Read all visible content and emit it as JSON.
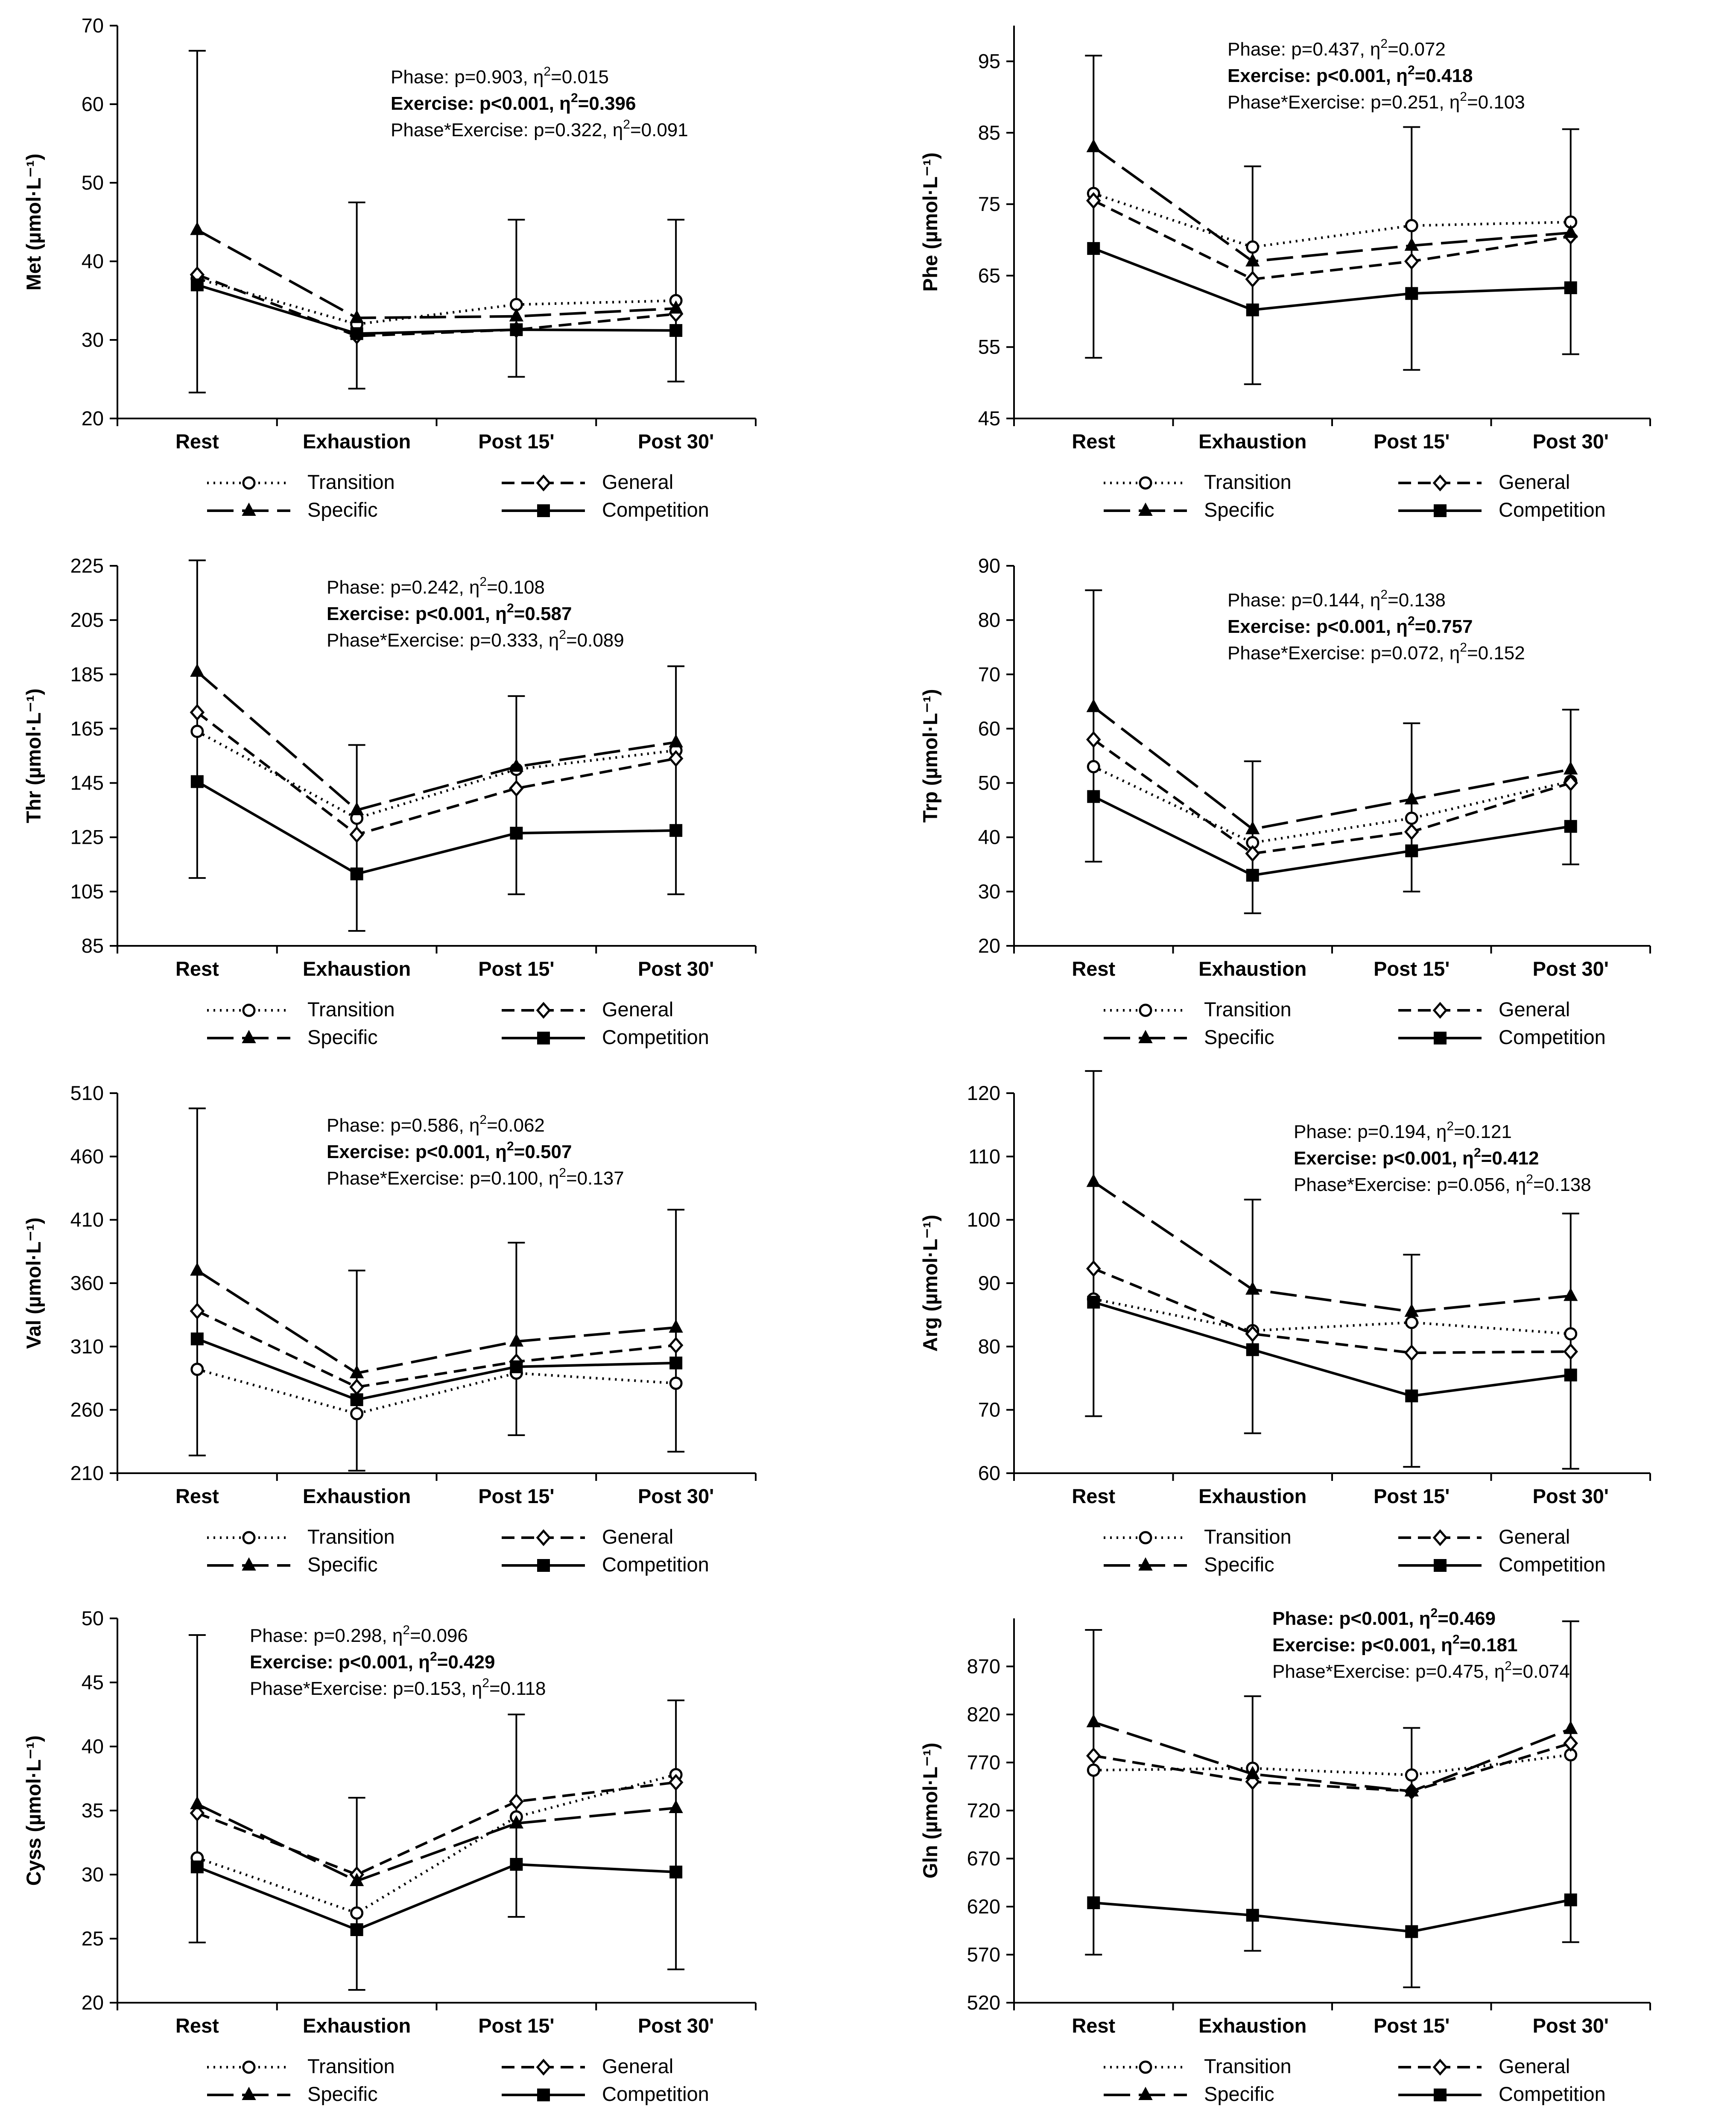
{
  "chart_data": [
    {
      "type": "line",
      "ylabel": "Met (µmol·L⁻¹)",
      "ylim": [
        20,
        70
      ],
      "yticks": [
        20,
        30,
        40,
        50,
        60,
        70
      ],
      "categories": [
        "Rest",
        "Exhaustion",
        "Post 15'",
        "Post 30'"
      ],
      "series": [
        {
          "name": "Transition",
          "values": [
            37.8,
            32.0,
            34.5,
            35.0
          ]
        },
        {
          "name": "General",
          "values": [
            38.3,
            30.5,
            31.3,
            33.3
          ]
        },
        {
          "name": "Specific",
          "values": [
            44.0,
            32.8,
            33.0,
            34.0
          ]
        },
        {
          "name": "Competition",
          "values": [
            37.0,
            30.8,
            31.3,
            31.2
          ]
        }
      ],
      "error_bars": [
        {
          "category": "Rest",
          "low": 23.3,
          "high": 66.8
        },
        {
          "category": "Exhaustion",
          "low": 23.8,
          "high": 47.5
        },
        {
          "category": "Post 15'",
          "low": 25.3,
          "high": 45.3
        },
        {
          "category": "Post 30'",
          "low": 24.7,
          "high": 45.3
        }
      ],
      "stats": [
        {
          "name": "Phase",
          "p": "p=0.903",
          "eta": "0.015",
          "bold": false
        },
        {
          "name": "Exercise",
          "p": "p<0.001",
          "eta": "0.396",
          "bold": true
        },
        {
          "name": "Phase*Exercise",
          "p": "p=0.322",
          "eta": "0.091",
          "bold": false
        }
      ]
    },
    {
      "type": "line",
      "ylabel": "Phe (µmol·L⁻¹)",
      "ylim": [
        45,
        100
      ],
      "yticks": [
        45,
        55,
        65,
        75,
        85,
        95
      ],
      "categories": [
        "Rest",
        "Exhaustion",
        "Post 15'",
        "Post 30'"
      ],
      "series": [
        {
          "name": "Transition",
          "values": [
            76.5,
            69.0,
            72.0,
            72.5
          ]
        },
        {
          "name": "General",
          "values": [
            75.5,
            64.5,
            67.0,
            70.5
          ]
        },
        {
          "name": "Specific",
          "values": [
            83.0,
            67.0,
            69.2,
            71.0
          ]
        },
        {
          "name": "Competition",
          "values": [
            68.8,
            60.2,
            62.5,
            63.3
          ]
        }
      ],
      "error_bars": [
        {
          "category": "Rest",
          "low": 53.5,
          "high": 95.8
        },
        {
          "category": "Exhaustion",
          "low": 49.8,
          "high": 80.3
        },
        {
          "category": "Post 15'",
          "low": 51.8,
          "high": 85.8
        },
        {
          "category": "Post 30'",
          "low": 54.0,
          "high": 85.5
        }
      ],
      "stats": [
        {
          "name": "Phase",
          "p": "p=0.437",
          "eta": "0.072",
          "bold": false
        },
        {
          "name": "Exercise",
          "p": "p<0.001",
          "eta": "0.418",
          "bold": true
        },
        {
          "name": "Phase*Exercise",
          "p": "p=0.251",
          "eta": "0.103",
          "bold": false
        }
      ]
    },
    {
      "type": "line",
      "ylabel": "Thr (µmol·L⁻¹)",
      "ylim": [
        85,
        225
      ],
      "yticks": [
        85,
        105,
        125,
        145,
        165,
        185,
        205,
        225
      ],
      "categories": [
        "Rest",
        "Exhaustion",
        "Post 15'",
        "Post 30'"
      ],
      "series": [
        {
          "name": "Transition",
          "values": [
            164,
            132,
            150,
            157
          ]
        },
        {
          "name": "General",
          "values": [
            171,
            126,
            143,
            154
          ]
        },
        {
          "name": "Specific",
          "values": [
            186,
            135,
            151,
            160
          ]
        },
        {
          "name": "Competition",
          "values": [
            145.5,
            111.5,
            126.5,
            127.5
          ]
        }
      ],
      "error_bars": [
        {
          "category": "Rest",
          "low": 110,
          "high": 227
        },
        {
          "category": "Exhaustion",
          "low": 90.5,
          "high": 159
        },
        {
          "category": "Post 15'",
          "low": 104,
          "high": 177
        },
        {
          "category": "Post 30'",
          "low": 104,
          "high": 188
        }
      ],
      "stats": [
        {
          "name": "Phase",
          "p": "p=0.242",
          "eta": "0.108",
          "bold": false
        },
        {
          "name": "Exercise",
          "p": "p<0.001",
          "eta": "0.587",
          "bold": true
        },
        {
          "name": "Phase*Exercise",
          "p": "p=0.333",
          "eta": "0.089",
          "bold": false
        }
      ]
    },
    {
      "type": "line",
      "ylabel": "Trp (µmol·L⁻¹)",
      "ylim": [
        20,
        90
      ],
      "yticks": [
        20,
        30,
        40,
        50,
        60,
        70,
        80,
        90
      ],
      "categories": [
        "Rest",
        "Exhaustion",
        "Post 15'",
        "Post 30'"
      ],
      "series": [
        {
          "name": "Transition",
          "values": [
            53.0,
            39.0,
            43.5,
            50.3
          ]
        },
        {
          "name": "General",
          "values": [
            58.0,
            37.0,
            41.0,
            50.0
          ]
        },
        {
          "name": "Specific",
          "values": [
            64.0,
            41.5,
            47.0,
            52.5
          ]
        },
        {
          "name": "Competition",
          "values": [
            47.5,
            33.0,
            37.5,
            42.0
          ]
        }
      ],
      "error_bars": [
        {
          "category": "Rest",
          "low": 35.5,
          "high": 85.5
        },
        {
          "category": "Exhaustion",
          "low": 26.0,
          "high": 54.0
        },
        {
          "category": "Post 15'",
          "low": 30.0,
          "high": 61.0
        },
        {
          "category": "Post 30'",
          "low": 35.0,
          "high": 63.5
        }
      ],
      "stats": [
        {
          "name": "Phase",
          "p": "p=0.144",
          "eta": "0.138",
          "bold": false
        },
        {
          "name": "Exercise",
          "p": "p<0.001",
          "eta": "0.757",
          "bold": true
        },
        {
          "name": "Phase*Exercise",
          "p": "p=0.072",
          "eta": "0.152",
          "bold": false
        }
      ]
    },
    {
      "type": "line",
      "ylabel": "Val (µmol·L⁻¹)",
      "ylim": [
        210,
        510
      ],
      "yticks": [
        210,
        260,
        310,
        360,
        410,
        460,
        510
      ],
      "categories": [
        "Rest",
        "Exhaustion",
        "Post 15'",
        "Post 30'"
      ],
      "series": [
        {
          "name": "Transition",
          "values": [
            292,
            257,
            289,
            281
          ]
        },
        {
          "name": "General",
          "values": [
            338,
            278,
            298,
            311
          ]
        },
        {
          "name": "Specific",
          "values": [
            370,
            289,
            314,
            325
          ]
        },
        {
          "name": "Competition",
          "values": [
            316,
            268,
            294,
            297
          ]
        }
      ],
      "error_bars": [
        {
          "category": "Rest",
          "low": 224,
          "high": 498
        },
        {
          "category": "Exhaustion",
          "low": 212,
          "high": 370
        },
        {
          "category": "Post 15'",
          "low": 240,
          "high": 392
        },
        {
          "category": "Post 30'",
          "low": 227,
          "high": 418
        }
      ],
      "stats": [
        {
          "name": "Phase",
          "p": "p=0.586",
          "eta": "0.062",
          "bold": false
        },
        {
          "name": "Exercise",
          "p": "p<0.001",
          "eta": "0.507",
          "bold": true
        },
        {
          "name": "Phase*Exercise",
          "p": "p=0.100",
          "eta": "0.137",
          "bold": false
        }
      ]
    },
    {
      "type": "line",
      "ylabel": "Arg (µmol·L⁻¹)",
      "ylim": [
        60,
        120
      ],
      "yticks": [
        60,
        70,
        80,
        90,
        100,
        110,
        120
      ],
      "categories": [
        "Rest",
        "Exhaustion",
        "Post 15'",
        "Post 30'"
      ],
      "series": [
        {
          "name": "Transition",
          "values": [
            87.5,
            82.5,
            83.8,
            82.0
          ]
        },
        {
          "name": "General",
          "values": [
            92.3,
            82.0,
            79.0,
            79.2
          ]
        },
        {
          "name": "Specific",
          "values": [
            106.0,
            89.0,
            85.5,
            88.0
          ]
        },
        {
          "name": "Competition",
          "values": [
            87.0,
            79.5,
            72.2,
            75.5
          ]
        }
      ],
      "error_bars": [
        {
          "category": "Rest",
          "low": 69.0,
          "high": 123.5
        },
        {
          "category": "Exhaustion",
          "low": 66.3,
          "high": 103.2
        },
        {
          "category": "Post 15'",
          "low": 61.0,
          "high": 94.5
        },
        {
          "category": "Post 30'",
          "low": 60.7,
          "high": 101.0
        }
      ],
      "stats": [
        {
          "name": "Phase",
          "p": "p=0.194",
          "eta": "0.121",
          "bold": false
        },
        {
          "name": "Exercise",
          "p": "p<0.001",
          "eta": "0.412",
          "bold": true
        },
        {
          "name": "Phase*Exercise",
          "p": "p=0.056",
          "eta": "0.138",
          "bold": false
        }
      ]
    },
    {
      "type": "line",
      "ylabel": "Cyss (µmol·L⁻¹)",
      "ylim": [
        20,
        50
      ],
      "yticks": [
        20,
        25,
        30,
        35,
        40,
        45,
        50
      ],
      "categories": [
        "Rest",
        "Exhaustion",
        "Post 15'",
        "Post 30'"
      ],
      "series": [
        {
          "name": "Transition",
          "values": [
            31.3,
            27.0,
            34.5,
            37.8
          ]
        },
        {
          "name": "General",
          "values": [
            34.8,
            30.0,
            35.7,
            37.2
          ]
        },
        {
          "name": "Specific",
          "values": [
            35.5,
            29.5,
            34.0,
            35.2
          ]
        },
        {
          "name": "Competition",
          "values": [
            30.6,
            25.7,
            30.8,
            30.2
          ]
        }
      ],
      "error_bars": [
        {
          "category": "Rest",
          "low": 24.7,
          "high": 48.7
        },
        {
          "category": "Exhaustion",
          "low": 21.0,
          "high": 36.0
        },
        {
          "category": "Post 15'",
          "low": 26.7,
          "high": 42.5
        },
        {
          "category": "Post 30'",
          "low": 22.6,
          "high": 43.6
        }
      ],
      "stats": [
        {
          "name": "Phase",
          "p": "p=0.298",
          "eta": "0.096",
          "bold": false
        },
        {
          "name": "Exercise",
          "p": "p<0.001",
          "eta": "0.429",
          "bold": true
        },
        {
          "name": "Phase*Exercise",
          "p": "p=0.153",
          "eta": "0.118",
          "bold": false
        }
      ]
    },
    {
      "type": "line",
      "ylabel": "Gln (µmol·L⁻¹)",
      "ylim": [
        520,
        920
      ],
      "yticks": [
        520,
        570,
        620,
        670,
        720,
        770,
        820,
        870
      ],
      "categories": [
        "Rest",
        "Exhaustion",
        "Post 15'",
        "Post 30'"
      ],
      "series": [
        {
          "name": "Transition",
          "values": [
            762,
            764,
            757,
            778
          ]
        },
        {
          "name": "General",
          "values": [
            777,
            750,
            740,
            790
          ]
        },
        {
          "name": "Specific",
          "values": [
            812,
            758,
            740,
            805
          ]
        },
        {
          "name": "Competition",
          "values": [
            624,
            611,
            594,
            627
          ]
        }
      ],
      "error_bars": [
        {
          "category": "Rest",
          "low": 570,
          "high": 908
        },
        {
          "category": "Exhaustion",
          "low": 574,
          "high": 839
        },
        {
          "category": "Post 15'",
          "low": 536,
          "high": 806
        },
        {
          "category": "Post 30'",
          "low": 583,
          "high": 917
        }
      ],
      "stats": [
        {
          "name": "Phase",
          "p": "p<0.001",
          "eta": "0.469",
          "bold": true
        },
        {
          "name": "Exercise",
          "p": "p<0.001",
          "eta": "0.181",
          "bold": true
        },
        {
          "name": "Phase*Exercise",
          "p": "p=0.475",
          "eta": "0.074",
          "bold": false
        }
      ]
    }
  ],
  "legend": {
    "entries": [
      "Transition",
      "General",
      "Specific",
      "Competition"
    ]
  },
  "eta_symbol": "η",
  "eta_power": "2"
}
